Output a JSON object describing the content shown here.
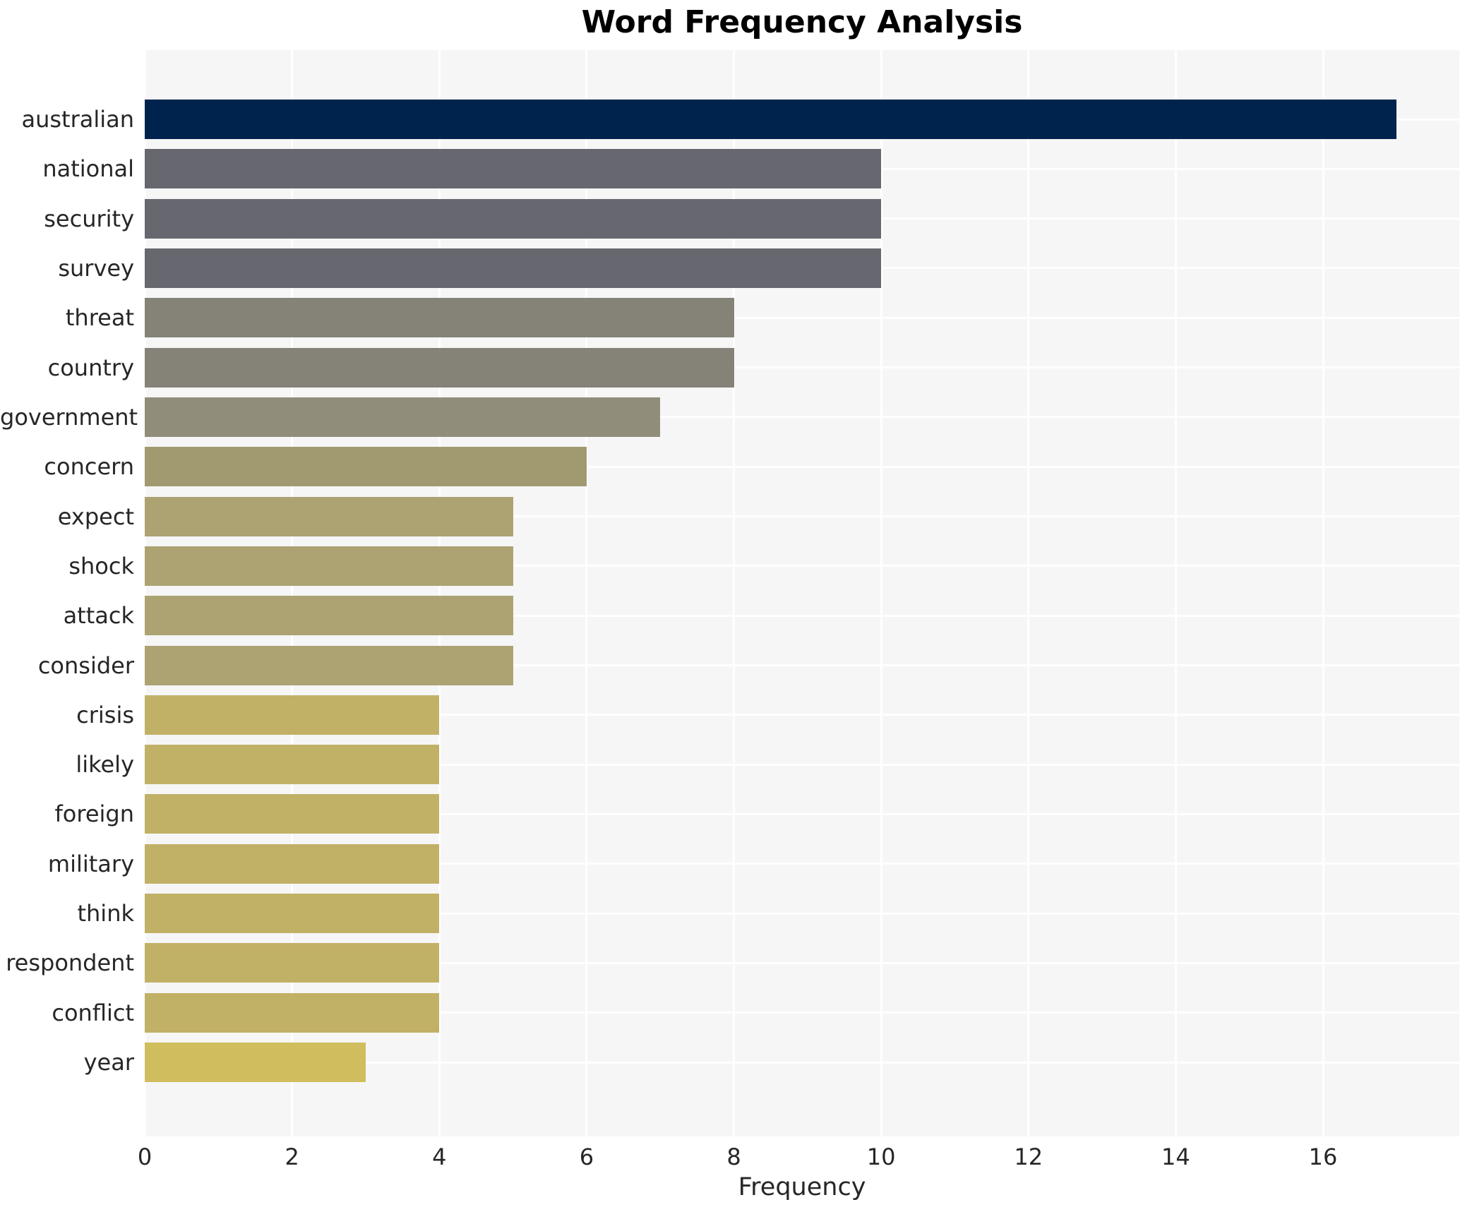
{
  "title": "Word Frequency Analysis",
  "chart_data": {
    "type": "bar",
    "orientation": "horizontal",
    "title": "Word Frequency Analysis",
    "xlabel": "Frequency",
    "ylabel": "",
    "categories": [
      "australian",
      "national",
      "security",
      "survey",
      "threat",
      "country",
      "government",
      "concern",
      "expect",
      "shock",
      "attack",
      "consider",
      "crisis",
      "likely",
      "foreign",
      "military",
      "think",
      "respondent",
      "conflict",
      "year"
    ],
    "values": [
      17,
      10,
      10,
      10,
      8,
      8,
      7,
      6,
      5,
      5,
      5,
      5,
      4,
      4,
      4,
      4,
      4,
      4,
      4,
      3
    ],
    "bar_colors": [
      "#00234e",
      "#67686f",
      "#67686f",
      "#67686f",
      "#858278",
      "#858278",
      "#918d7b",
      "#a19a70",
      "#ada272",
      "#ada272",
      "#ada272",
      "#ada272",
      "#c1b166",
      "#c1b166",
      "#c1b166",
      "#c1b166",
      "#c1b166",
      "#c1b166",
      "#c1b166",
      "#d0bd5e"
    ],
    "xlim": [
      0,
      17.85
    ],
    "xticks": [
      0,
      2,
      4,
      6,
      8,
      10,
      12,
      14,
      16
    ],
    "grid": true,
    "legend_position": "none",
    "plot_bg": "#f6f6f7",
    "grid_color": "#ffffff",
    "figure_bg": "#ffffff",
    "text_color": "#262626"
  }
}
